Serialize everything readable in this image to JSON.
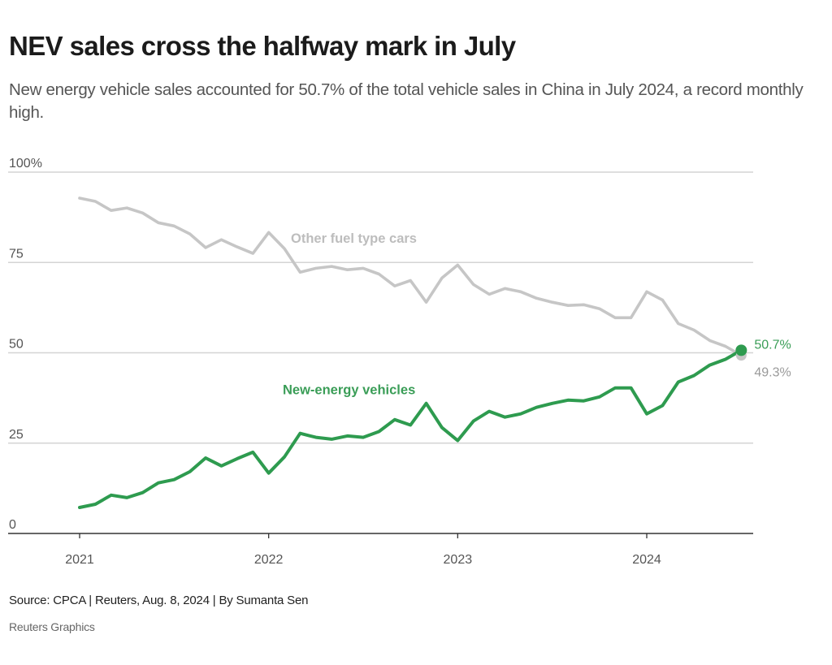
{
  "header": {
    "title": "NEV sales cross the halfway mark in July",
    "subtitle": "New energy vehicle sales accounted for 50.7% of the total vehicle sales in China in July 2024, a record monthly high."
  },
  "footer": {
    "source": "Source: CPCA | Reuters, Aug. 8, 2024 | By Sumanta Sen",
    "credit": "Reuters Graphics"
  },
  "chart_data": {
    "type": "line",
    "title": "NEV sales cross the halfway mark in July",
    "xlabel": "",
    "ylabel": "",
    "ylim": [
      0,
      100
    ],
    "yticks": [
      {
        "value": 0,
        "label": "0"
      },
      {
        "value": 25,
        "label": "25"
      },
      {
        "value": 50,
        "label": "50"
      },
      {
        "value": 75,
        "label": "75"
      },
      {
        "value": 100,
        "label": "100%"
      }
    ],
    "xticks": [
      {
        "index": 0,
        "label": "2021"
      },
      {
        "index": 12,
        "label": "2022"
      },
      {
        "index": 24,
        "label": "2023"
      },
      {
        "index": 36,
        "label": "2024"
      }
    ],
    "grid": true,
    "x": [
      "2021-01",
      "2021-02",
      "2021-03",
      "2021-04",
      "2021-05",
      "2021-06",
      "2021-07",
      "2021-08",
      "2021-09",
      "2021-10",
      "2021-11",
      "2021-12",
      "2022-01",
      "2022-02",
      "2022-03",
      "2022-04",
      "2022-05",
      "2022-06",
      "2022-07",
      "2022-08",
      "2022-09",
      "2022-10",
      "2022-11",
      "2022-12",
      "2023-01",
      "2023-02",
      "2023-03",
      "2023-04",
      "2023-05",
      "2023-06",
      "2023-07",
      "2023-08",
      "2023-09",
      "2023-10",
      "2023-11",
      "2023-12",
      "2024-01",
      "2024-02",
      "2024-03",
      "2024-04",
      "2024-05",
      "2024-06",
      "2024-07"
    ],
    "series": [
      {
        "name": "Other fuel type cars",
        "color": "#c6c6c6",
        "label_color": "#bdbdbd",
        "values": [
          92.8,
          91.9,
          89.4,
          90.1,
          88.7,
          86.0,
          85.1,
          82.9,
          79.1,
          81.3,
          79.3,
          77.5,
          83.3,
          78.8,
          72.3,
          73.4,
          73.9,
          73.0,
          73.4,
          71.8,
          68.5,
          70.0,
          64.0,
          70.7,
          74.3,
          68.9,
          66.2,
          67.8,
          66.9,
          65.1,
          64.0,
          63.1,
          63.3,
          62.2,
          59.7,
          59.7,
          66.9,
          64.6,
          58.1,
          56.3,
          53.4,
          51.8,
          49.3
        ],
        "end_label": "49.3%"
      },
      {
        "name": "New-energy vehicles",
        "color": "#2e9b4f",
        "label_color": "#3a9d57",
        "values": [
          7.2,
          8.1,
          10.6,
          9.9,
          11.3,
          14.0,
          14.9,
          17.1,
          20.9,
          18.7,
          20.7,
          22.5,
          16.7,
          21.2,
          27.7,
          26.6,
          26.1,
          27.0,
          26.6,
          28.2,
          31.5,
          30.0,
          36.0,
          29.3,
          25.7,
          31.1,
          33.8,
          32.2,
          33.1,
          34.9,
          36.0,
          36.9,
          36.7,
          37.8,
          40.3,
          40.3,
          33.1,
          35.4,
          41.9,
          43.7,
          46.6,
          48.2,
          50.7
        ],
        "end_label": "50.7%"
      }
    ],
    "annotations": [
      {
        "text": "Other fuel type cars",
        "series": 0
      },
      {
        "text": "New-energy vehicles",
        "series": 1
      }
    ],
    "legend": "inline"
  }
}
